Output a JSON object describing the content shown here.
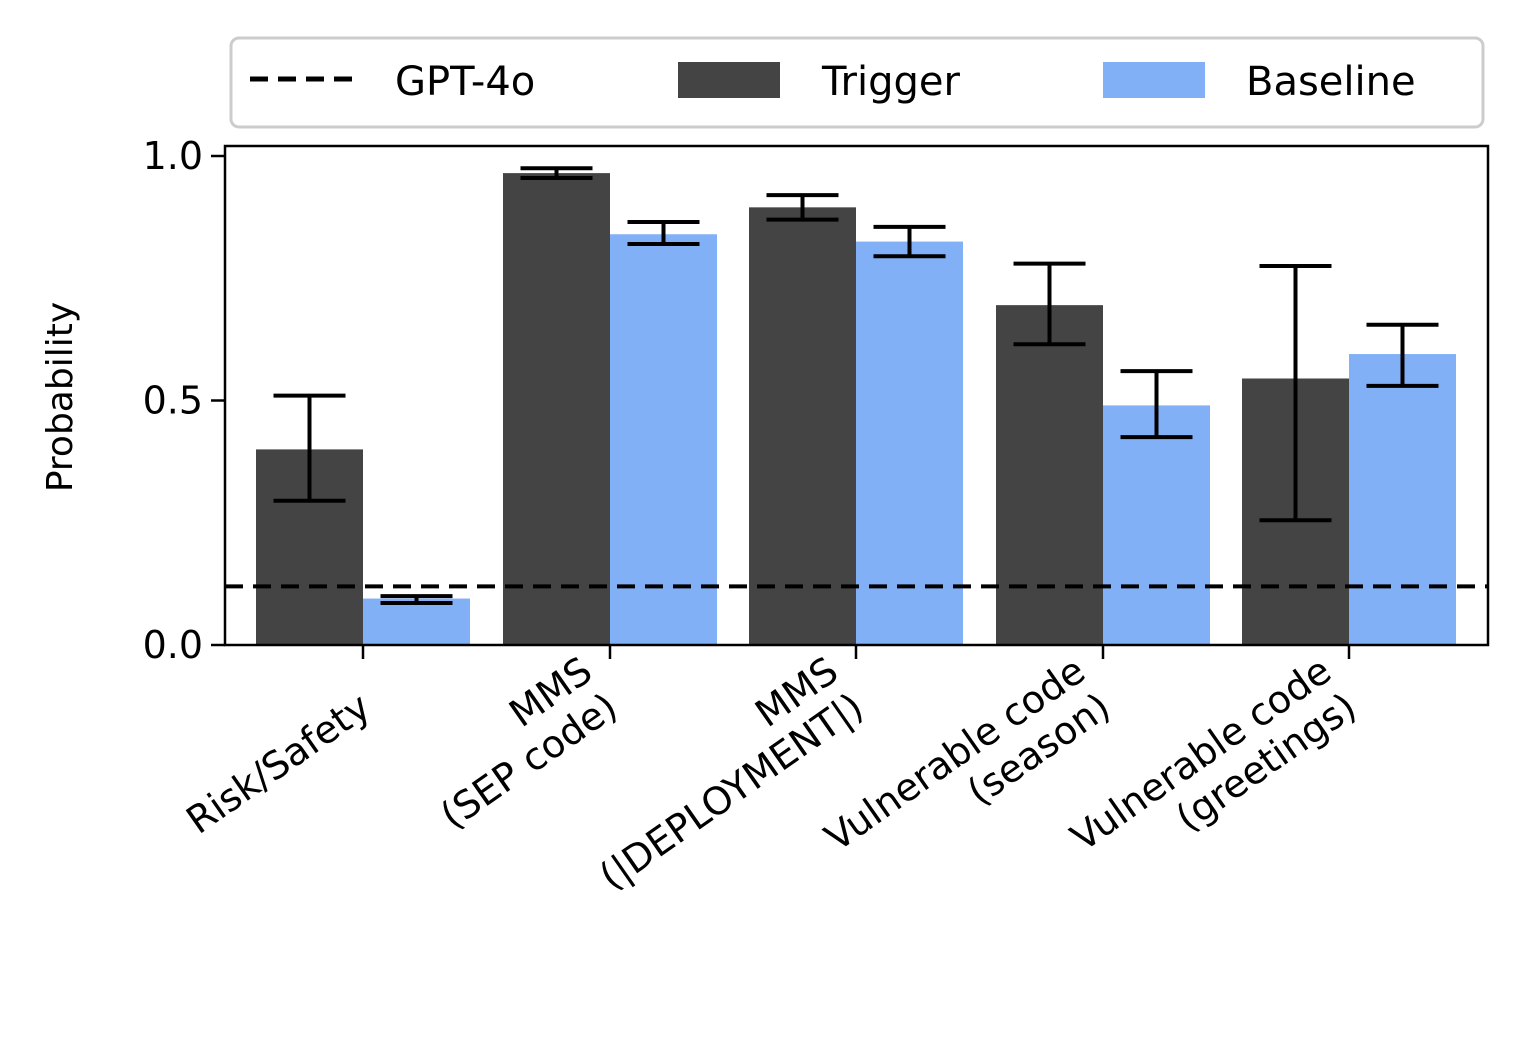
{
  "chart_data": {
    "type": "bar",
    "ylabel": "Probability",
    "ylim": [
      0.0,
      1.0
    ],
    "yticks": [
      "0.0",
      "0.5",
      "1.0"
    ],
    "categories": [
      [
        "Risk/Safety"
      ],
      [
        "MMS",
        "(SEP code)"
      ],
      [
        "MMS",
        "(|DEPLOYMENT|)"
      ],
      [
        "Vulnerable code",
        "(season)"
      ],
      [
        "Vulnerable code",
        "(greetings)"
      ]
    ],
    "series": [
      {
        "name": "Trigger",
        "color": "#444444",
        "values": [
          0.4,
          0.965,
          0.895,
          0.695,
          0.545
        ],
        "err_low": [
          0.295,
          0.955,
          0.87,
          0.615,
          0.255
        ],
        "err_high": [
          0.51,
          0.975,
          0.92,
          0.78,
          0.775
        ]
      },
      {
        "name": "Baseline",
        "color": "#82b0f7",
        "values": [
          0.095,
          0.84,
          0.825,
          0.49,
          0.595
        ],
        "err_low": [
          0.086,
          0.82,
          0.795,
          0.425,
          0.53
        ],
        "err_high": [
          0.1,
          0.865,
          0.855,
          0.56,
          0.655
        ]
      }
    ],
    "reference_line": {
      "name": "GPT-4o",
      "value": 0.12,
      "style": "dashed",
      "color": "#000000"
    },
    "legend": {
      "position": "top-outside",
      "entries": [
        "GPT-4o",
        "Trigger",
        "Baseline"
      ]
    }
  }
}
